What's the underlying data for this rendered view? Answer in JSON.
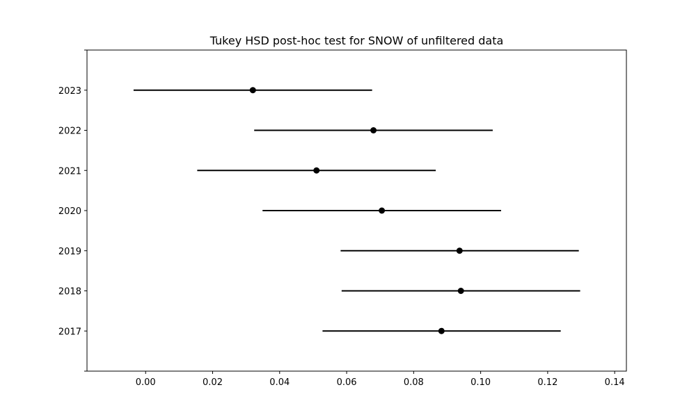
{
  "chart_data": {
    "type": "interval",
    "title": "Tukey HSD post-hoc test for SNOW of unfiltered data",
    "xlabel": "",
    "ylabel": "",
    "xlim": [
      -0.0175,
      0.1435
    ],
    "x_ticks": [
      "0.00",
      "0.02",
      "0.04",
      "0.06",
      "0.08",
      "0.10",
      "0.12",
      "0.14"
    ],
    "categories": [
      "2023",
      "2022",
      "2021",
      "2020",
      "2019",
      "2018",
      "2017"
    ],
    "means": [
      0.032,
      0.068,
      0.051,
      0.0705,
      0.0937,
      0.0941,
      0.0883
    ],
    "lower": [
      -0.0036,
      0.0324,
      0.0154,
      0.0349,
      0.0582,
      0.0585,
      0.0528
    ],
    "upper": [
      0.0676,
      0.1036,
      0.0866,
      0.1061,
      0.1293,
      0.1297,
      0.1239
    ],
    "grid": false,
    "legend": "none",
    "color": "#000000"
  }
}
